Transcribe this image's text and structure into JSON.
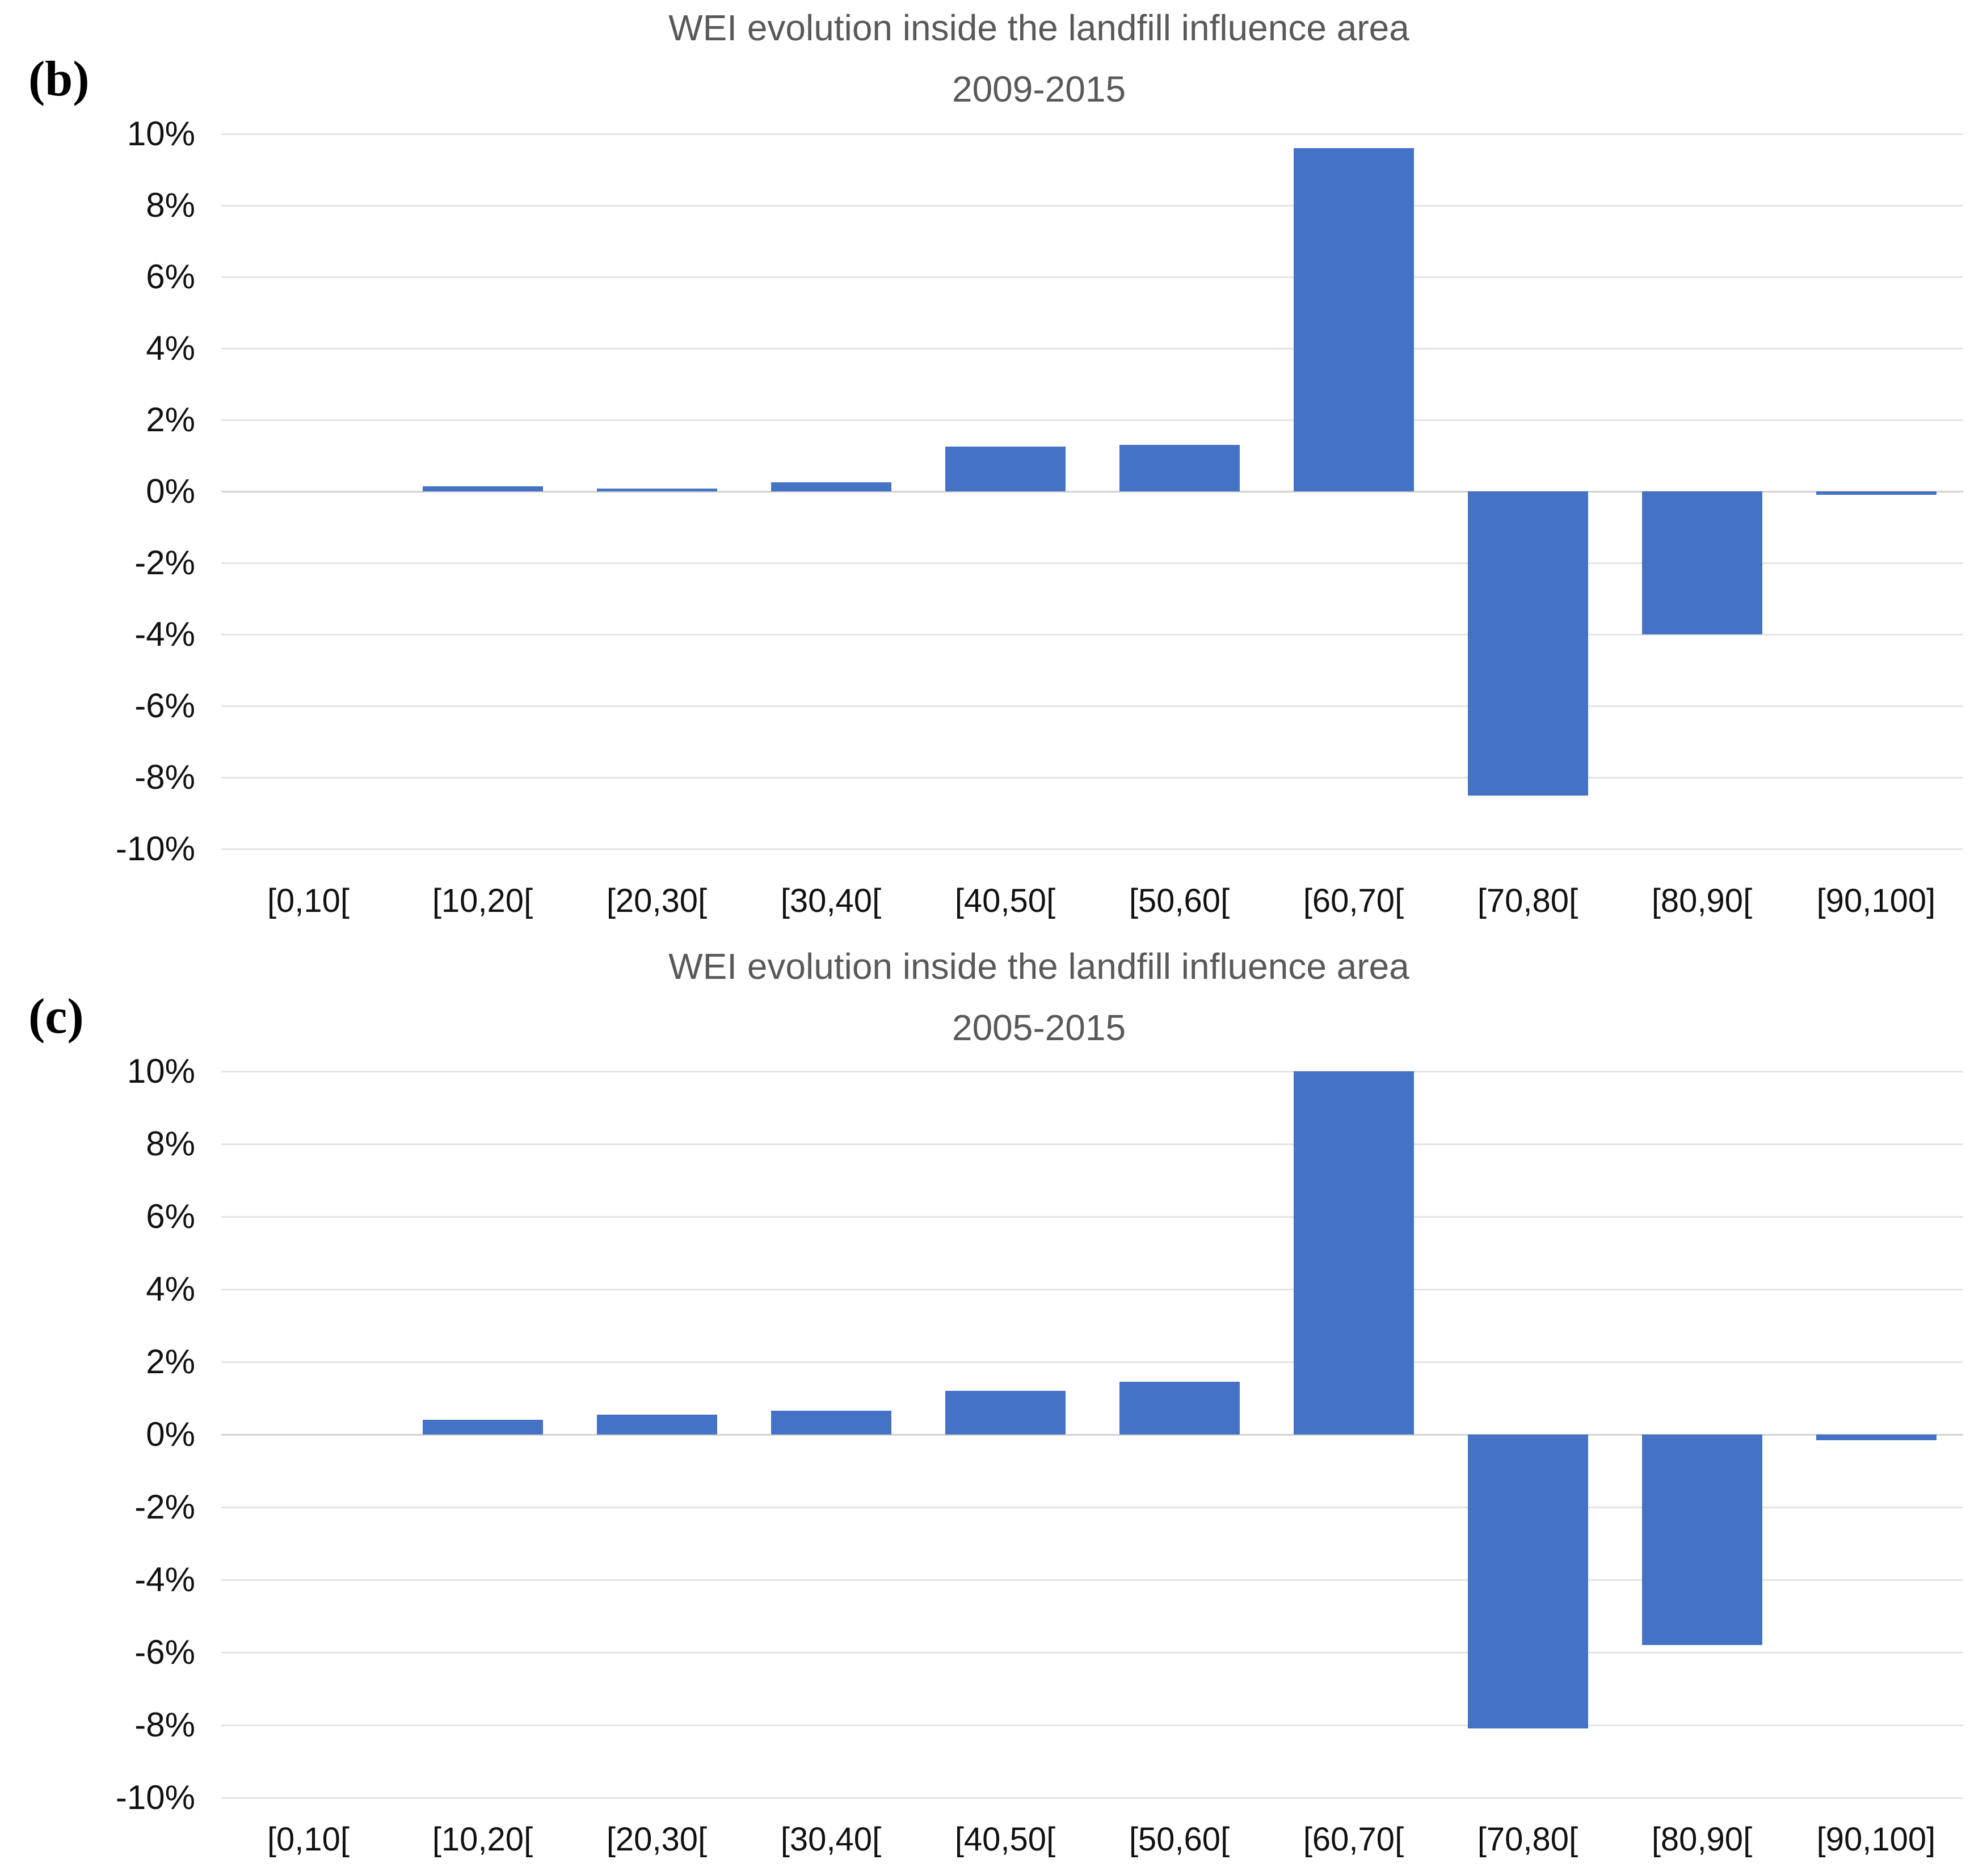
{
  "figure": {
    "background": "#FFFFFF"
  },
  "colors": {
    "bar": "#4472C4",
    "title": "#595959",
    "axis_text": "#111111",
    "gridline": "#E4E4E4",
    "zero_line": "#D2D2D2",
    "background": "#FFFFFF"
  },
  "chart_data": [
    {
      "type": "bar",
      "panel_label": "(b)",
      "title": "WEI evolution inside the landfill influence area",
      "subtitle": "2009-2015",
      "categories": [
        "[0,10[",
        "[10,20[",
        "[20,30[",
        "[30,40[",
        "[40,50[",
        "[50,60[",
        "[60,70[",
        "[70,80[",
        "[80,90[",
        "[90,100]"
      ],
      "values_percent": [
        0,
        0.15,
        0.08,
        0.25,
        1.25,
        1.3,
        9.6,
        -8.5,
        -4.0,
        -0.1
      ],
      "unit": "%",
      "xlabel": "",
      "ylabel": "",
      "ylim": [
        -10,
        10
      ],
      "y_tick_step": 2,
      "y_tick_labels": [
        "10%",
        "8%",
        "6%",
        "4%",
        "2%",
        "0%",
        "-2%",
        "-4%",
        "-6%",
        "-8%",
        "-10%"
      ],
      "grid": true,
      "legend": false,
      "bar_color": "#4472C4"
    },
    {
      "type": "bar",
      "panel_label": "(c)",
      "title": "WEI evolution inside the landfill influence area",
      "subtitle": "2005-2015",
      "categories": [
        "[0,10[",
        "[10,20[",
        "[20,30[",
        "[30,40[",
        "[40,50[",
        "[50,60[",
        "[60,70[",
        "[70,80[",
        "[80,90[",
        "[90,100]"
      ],
      "values_percent": [
        0,
        0.4,
        0.55,
        0.65,
        1.2,
        1.45,
        10.0,
        -8.1,
        -5.8,
        -0.15
      ],
      "unit": "%",
      "xlabel": "",
      "ylabel": "",
      "ylim": [
        -10,
        10
      ],
      "y_tick_step": 2,
      "y_tick_labels": [
        "10%",
        "8%",
        "6%",
        "4%",
        "2%",
        "0%",
        "-2%",
        "-4%",
        "-6%",
        "-8%",
        "-10%"
      ],
      "grid": true,
      "legend": false,
      "bar_color": "#4472C4"
    }
  ]
}
